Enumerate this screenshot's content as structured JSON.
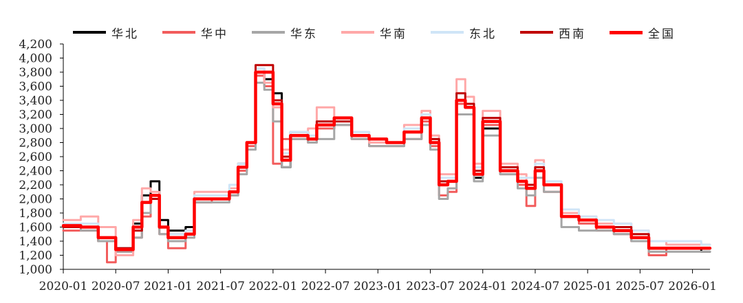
{
  "chart_data": {
    "type": "line",
    "title": "",
    "xlabel": "",
    "ylabel": "",
    "ylim": [
      1000,
      4200
    ],
    "yticks": [
      1000,
      1200,
      1400,
      1600,
      1800,
      2000,
      2200,
      2400,
      2600,
      2800,
      3000,
      3200,
      3400,
      3600,
      3800,
      4000,
      4200
    ],
    "ytick_labels": [
      "1,000",
      "1,200",
      "1,400",
      "1,600",
      "1,800",
      "2,000",
      "2,200",
      "2,400",
      "2,600",
      "2,800",
      "3,000",
      "3,200",
      "3,400",
      "3,600",
      "3,800",
      "4,000",
      "4,200"
    ],
    "xlim": [
      "2020-01",
      "2026-03"
    ],
    "xticks": [
      "2020-01",
      "2020-07",
      "2021-01",
      "2021-07",
      "2022-01",
      "2022-07",
      "2023-01",
      "2023-07",
      "2024-01",
      "2024-07",
      "2025-01",
      "2025-07",
      "2026-01"
    ],
    "grid": false,
    "legend": "top",
    "series": [
      {
        "name": "华北",
        "color": "#000000",
        "x": [
          "2020-01",
          "2020-03",
          "2020-05",
          "2020-07",
          "2020-09",
          "2020-10",
          "2020-11",
          "2020-12",
          "2021-01",
          "2021-03",
          "2021-04",
          "2021-06",
          "2021-08",
          "2021-09",
          "2021-10",
          "2021-11",
          "2021-12",
          "2022-01",
          "2022-02",
          "2022-03",
          "2022-05",
          "2022-06",
          "2022-08",
          "2022-10",
          "2022-12",
          "2023-02",
          "2023-04",
          "2023-06",
          "2023-07",
          "2023-08",
          "2023-09",
          "2023-10",
          "2023-11",
          "2023-12",
          "2024-01",
          "2024-03",
          "2024-05",
          "2024-06",
          "2024-07",
          "2024-08",
          "2024-10",
          "2024-12",
          "2025-02",
          "2025-04",
          "2025-06",
          "2025-08",
          "2025-10",
          "2025-12",
          "2026-02"
        ],
        "values": [
          1620,
          1600,
          1400,
          1300,
          1650,
          2050,
          2250,
          1700,
          1550,
          1600,
          2000,
          2000,
          2100,
          2500,
          2800,
          3800,
          3700,
          3500,
          2450,
          2950,
          2850,
          3000,
          3150,
          2900,
          2850,
          2800,
          2950,
          3150,
          2800,
          2200,
          2250,
          3400,
          3300,
          2300,
          3000,
          2400,
          2200,
          2150,
          2400,
          2200,
          1750,
          1700,
          1600,
          1550,
          1450,
          1300,
          1300,
          1300,
          1250
        ]
      },
      {
        "name": "华中",
        "color": "#f25c5c",
        "x": [
          "2020-01",
          "2020-03",
          "2020-05",
          "2020-06",
          "2020-07",
          "2020-09",
          "2020-10",
          "2020-11",
          "2020-12",
          "2021-01",
          "2021-03",
          "2021-04",
          "2021-06",
          "2021-08",
          "2021-09",
          "2021-10",
          "2021-11",
          "2021-12",
          "2022-01",
          "2022-02",
          "2022-03",
          "2022-05",
          "2022-06",
          "2022-08",
          "2022-10",
          "2022-12",
          "2023-02",
          "2023-04",
          "2023-06",
          "2023-07",
          "2023-08",
          "2023-09",
          "2023-10",
          "2023-11",
          "2023-12",
          "2024-01",
          "2024-03",
          "2024-05",
          "2024-06",
          "2024-07",
          "2024-08",
          "2024-10",
          "2024-12",
          "2025-02",
          "2025-04",
          "2025-06",
          "2025-08",
          "2025-10",
          "2025-12",
          "2026-02"
        ],
        "values": [
          1550,
          1550,
          1400,
          1100,
          1250,
          1450,
          1750,
          2050,
          1500,
          1300,
          1450,
          1950,
          2000,
          2050,
          2400,
          2750,
          3750,
          3600,
          2500,
          2850,
          2850,
          2800,
          3000,
          3050,
          2850,
          2750,
          2750,
          2850,
          3100,
          2750,
          2050,
          2100,
          3350,
          3300,
          2400,
          3050,
          2350,
          2200,
          1900,
          2450,
          2100,
          1750,
          1650,
          1550,
          1500,
          1400,
          1200,
          1300,
          1300,
          1300
        ]
      },
      {
        "name": "华东",
        "color": "#a6a6a6",
        "x": [
          "2020-01",
          "2020-03",
          "2020-05",
          "2020-07",
          "2020-09",
          "2020-10",
          "2020-11",
          "2020-12",
          "2021-01",
          "2021-03",
          "2021-04",
          "2021-06",
          "2021-08",
          "2021-09",
          "2021-10",
          "2021-11",
          "2021-12",
          "2022-01",
          "2022-02",
          "2022-03",
          "2022-05",
          "2022-06",
          "2022-08",
          "2022-10",
          "2022-12",
          "2023-02",
          "2023-04",
          "2023-06",
          "2023-07",
          "2023-08",
          "2023-09",
          "2023-10",
          "2023-11",
          "2023-12",
          "2024-01",
          "2024-03",
          "2024-05",
          "2024-06",
          "2024-07",
          "2024-08",
          "2024-10",
          "2024-12",
          "2025-02",
          "2025-04",
          "2025-06",
          "2025-08",
          "2025-10",
          "2025-12",
          "2026-02"
        ],
        "values": [
          1600,
          1550,
          1400,
          1250,
          1450,
          1800,
          2050,
          1500,
          1400,
          1450,
          1950,
          1950,
          2050,
          2350,
          2700,
          3650,
          3550,
          3100,
          2450,
          2850,
          2800,
          2850,
          3050,
          2850,
          2750,
          2750,
          2850,
          3050,
          2700,
          2000,
          2150,
          3200,
          3200,
          2250,
          2900,
          2350,
          2150,
          2050,
          2300,
          2100,
          1600,
          1550,
          1550,
          1500,
          1400,
          1250,
          1250,
          1250,
          1250
        ]
      },
      {
        "name": "华南",
        "color": "#ffa8a8",
        "x": [
          "2020-01",
          "2020-03",
          "2020-05",
          "2020-07",
          "2020-09",
          "2020-10",
          "2020-11",
          "2020-12",
          "2021-01",
          "2021-03",
          "2021-04",
          "2021-06",
          "2021-08",
          "2021-09",
          "2021-10",
          "2021-11",
          "2021-12",
          "2022-01",
          "2022-02",
          "2022-03",
          "2022-05",
          "2022-06",
          "2022-08",
          "2022-10",
          "2022-12",
          "2023-02",
          "2023-04",
          "2023-06",
          "2023-07",
          "2023-08",
          "2023-09",
          "2023-10",
          "2023-11",
          "2023-12",
          "2024-01",
          "2024-03",
          "2024-05",
          "2024-06",
          "2024-07",
          "2024-08",
          "2024-10",
          "2024-12",
          "2025-02",
          "2025-04",
          "2025-06",
          "2025-08",
          "2025-10",
          "2025-12",
          "2026-02"
        ],
        "values": [
          1700,
          1750,
          1600,
          1200,
          1700,
          2150,
          2100,
          1600,
          1500,
          1550,
          2100,
          2100,
          2150,
          2500,
          2800,
          3850,
          3650,
          3300,
          2700,
          2950,
          3000,
          3300,
          3150,
          2950,
          2800,
          2800,
          3050,
          3250,
          2900,
          2350,
          2350,
          3700,
          3450,
          2500,
          3250,
          2500,
          2350,
          2200,
          2550,
          2200,
          1800,
          1750,
          1650,
          1650,
          1550,
          1400,
          1350,
          1350,
          1350
        ]
      },
      {
        "name": "东北",
        "color": "#cfe5f7",
        "x": [
          "2020-01",
          "2020-03",
          "2020-05",
          "2020-07",
          "2020-09",
          "2020-10",
          "2020-11",
          "2020-12",
          "2021-01",
          "2021-03",
          "2021-04",
          "2021-06",
          "2021-08",
          "2021-09",
          "2021-10",
          "2021-11",
          "2021-12",
          "2022-01",
          "2022-02",
          "2022-03",
          "2022-05",
          "2022-06",
          "2022-08",
          "2022-10",
          "2022-12",
          "2023-02",
          "2023-04",
          "2023-06",
          "2023-07",
          "2023-08",
          "2023-09",
          "2023-10",
          "2023-11",
          "2023-12",
          "2024-01",
          "2024-03",
          "2024-05",
          "2024-06",
          "2024-07",
          "2024-08",
          "2024-10",
          "2024-12",
          "2025-02",
          "2025-04",
          "2025-06",
          "2025-08",
          "2025-10",
          "2025-12",
          "2026-02"
        ],
        "values": [
          1650,
          1650,
          1450,
          1300,
          1600,
          1950,
          2050,
          1600,
          1500,
          1550,
          2050,
          2050,
          2200,
          2500,
          2800,
          3850,
          3800,
          3400,
          2650,
          2950,
          2900,
          3100,
          3150,
          2950,
          2850,
          2800,
          3000,
          3200,
          2850,
          2300,
          2300,
          3500,
          3350,
          2450,
          3150,
          2450,
          2300,
          2300,
          2500,
          2250,
          1850,
          1750,
          1700,
          1650,
          1550,
          1400,
          1400,
          1400,
          1350
        ]
      },
      {
        "name": "西南",
        "color": "#c00000",
        "x": [
          "2020-01",
          "2020-03",
          "2020-05",
          "2020-07",
          "2020-09",
          "2020-10",
          "2020-11",
          "2020-12",
          "2021-01",
          "2021-03",
          "2021-04",
          "2021-06",
          "2021-08",
          "2021-09",
          "2021-10",
          "2021-11",
          "2021-12",
          "2022-01",
          "2022-02",
          "2022-03",
          "2022-05",
          "2022-06",
          "2022-08",
          "2022-10",
          "2022-12",
          "2023-02",
          "2023-04",
          "2023-06",
          "2023-07",
          "2023-08",
          "2023-09",
          "2023-10",
          "2023-11",
          "2023-12",
          "2024-01",
          "2024-03",
          "2024-05",
          "2024-06",
          "2024-07",
          "2024-08",
          "2024-10",
          "2024-12",
          "2025-02",
          "2025-04",
          "2025-06",
          "2025-08",
          "2025-10",
          "2025-12",
          "2026-02"
        ],
        "values": [
          1600,
          1600,
          1450,
          1300,
          1550,
          1950,
          2000,
          1600,
          1450,
          1500,
          2000,
          2000,
          2100,
          2450,
          2800,
          3900,
          3900,
          3400,
          2600,
          2900,
          2850,
          3100,
          3100,
          2900,
          2850,
          2800,
          2950,
          3150,
          2850,
          2250,
          2250,
          3500,
          3350,
          2400,
          3150,
          2450,
          2250,
          2200,
          2450,
          2200,
          1750,
          1700,
          1600,
          1600,
          1500,
          1300,
          1300,
          1300,
          1300
        ]
      },
      {
        "name": "全国",
        "color": "#ff0000",
        "x": [
          "2020-01",
          "2020-03",
          "2020-05",
          "2020-07",
          "2020-09",
          "2020-10",
          "2020-11",
          "2020-12",
          "2021-01",
          "2021-03",
          "2021-04",
          "2021-06",
          "2021-08",
          "2021-09",
          "2021-10",
          "2021-11",
          "2021-12",
          "2022-01",
          "2022-02",
          "2022-03",
          "2022-05",
          "2022-06",
          "2022-08",
          "2022-10",
          "2022-12",
          "2023-02",
          "2023-04",
          "2023-06",
          "2023-07",
          "2023-08",
          "2023-09",
          "2023-10",
          "2023-11",
          "2023-12",
          "2024-01",
          "2024-03",
          "2024-05",
          "2024-06",
          "2024-07",
          "2024-08",
          "2024-10",
          "2024-12",
          "2025-02",
          "2025-04",
          "2025-06",
          "2025-08",
          "2025-10",
          "2025-12",
          "2026-02"
        ],
        "values": [
          1620,
          1600,
          1450,
          1280,
          1600,
          1950,
          2050,
          1600,
          1450,
          1500,
          2000,
          2000,
          2100,
          2450,
          2800,
          3800,
          3800,
          3350,
          2550,
          2900,
          2850,
          3050,
          3150,
          2900,
          2850,
          2800,
          2950,
          3150,
          2800,
          2200,
          2250,
          3400,
          3300,
          2350,
          3100,
          2400,
          2250,
          2150,
          2400,
          2200,
          1750,
          1700,
          1600,
          1550,
          1450,
          1300,
          1300,
          1300,
          1300
        ]
      }
    ]
  }
}
